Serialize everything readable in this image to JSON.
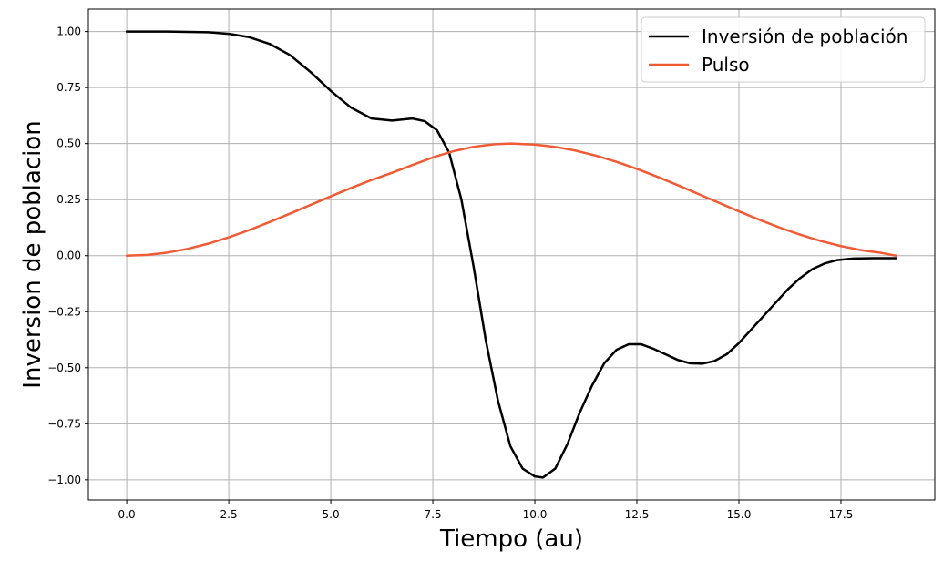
{
  "chart_data": {
    "type": "line",
    "title": "",
    "xlabel": "Tiempo (au)",
    "ylabel": "Inversion de poblacion",
    "xlim": [
      -0.94,
      19.8
    ],
    "ylim": [
      -1.09,
      1.1
    ],
    "xticks": [
      0.0,
      2.5,
      5.0,
      7.5,
      10.0,
      12.5,
      15.0,
      17.5
    ],
    "xtick_labels": [
      "0.0",
      "2.5",
      "5.0",
      "7.5",
      "10.0",
      "12.5",
      "15.0",
      "17.5"
    ],
    "yticks": [
      1.0,
      0.75,
      0.5,
      0.25,
      0.0,
      -0.25,
      -0.5,
      -0.75,
      -1.0
    ],
    "ytick_labels": [
      "1.00",
      "0.75",
      "0.50",
      "0.25",
      "0.00",
      "−0.25",
      "−0.50",
      "−0.75",
      "−1.00"
    ],
    "grid": true,
    "legend_position": "top-right",
    "series": [
      {
        "name": "Inversión de población",
        "color": "#000000",
        "points": [
          [
            0.0,
            1.0
          ],
          [
            1.0,
            1.0
          ],
          [
            2.0,
            0.997
          ],
          [
            2.5,
            0.99
          ],
          [
            3.0,
            0.975
          ],
          [
            3.5,
            0.945
          ],
          [
            4.0,
            0.895
          ],
          [
            4.5,
            0.82
          ],
          [
            5.0,
            0.735
          ],
          [
            5.5,
            0.66
          ],
          [
            6.0,
            0.612
          ],
          [
            6.5,
            0.603
          ],
          [
            7.0,
            0.612
          ],
          [
            7.3,
            0.6
          ],
          [
            7.6,
            0.56
          ],
          [
            7.9,
            0.46
          ],
          [
            8.2,
            0.25
          ],
          [
            8.5,
            -0.05
          ],
          [
            8.8,
            -0.38
          ],
          [
            9.1,
            -0.65
          ],
          [
            9.4,
            -0.85
          ],
          [
            9.7,
            -0.95
          ],
          [
            10.0,
            -0.985
          ],
          [
            10.2,
            -0.99
          ],
          [
            10.5,
            -0.95
          ],
          [
            10.8,
            -0.84
          ],
          [
            11.1,
            -0.7
          ],
          [
            11.4,
            -0.58
          ],
          [
            11.7,
            -0.48
          ],
          [
            12.0,
            -0.42
          ],
          [
            12.3,
            -0.395
          ],
          [
            12.6,
            -0.395
          ],
          [
            12.9,
            -0.415
          ],
          [
            13.2,
            -0.44
          ],
          [
            13.5,
            -0.465
          ],
          [
            13.8,
            -0.48
          ],
          [
            14.1,
            -0.482
          ],
          [
            14.4,
            -0.47
          ],
          [
            14.7,
            -0.44
          ],
          [
            15.0,
            -0.39
          ],
          [
            15.3,
            -0.33
          ],
          [
            15.6,
            -0.27
          ],
          [
            15.9,
            -0.21
          ],
          [
            16.2,
            -0.15
          ],
          [
            16.5,
            -0.1
          ],
          [
            16.8,
            -0.06
          ],
          [
            17.1,
            -0.035
          ],
          [
            17.4,
            -0.02
          ],
          [
            17.8,
            -0.013
          ],
          [
            18.3,
            -0.011
          ],
          [
            18.85,
            -0.011
          ]
        ]
      },
      {
        "name": "Pulso",
        "color": "#f05a35",
        "points": [
          [
            0.0,
            0.0
          ],
          [
            0.5,
            0.0035
          ],
          [
            1.0,
            0.0138
          ],
          [
            1.5,
            0.0307
          ],
          [
            2.0,
            0.0537
          ],
          [
            2.5,
            0.0818
          ],
          [
            3.0,
            0.1142
          ],
          [
            3.5,
            0.1499
          ],
          [
            4.0,
            0.1875
          ],
          [
            4.5,
            0.2261
          ],
          [
            5.0,
            0.2647
          ],
          [
            5.5,
            0.3023
          ],
          [
            6.0,
            0.3376
          ],
          [
            6.5,
            0.3698
          ],
          [
            7.0,
            0.4044
          ],
          [
            7.5,
            0.4383
          ],
          [
            8.0,
            0.466
          ],
          [
            8.5,
            0.4857
          ],
          [
            9.0,
            0.4973
          ],
          [
            9.42,
            0.5
          ],
          [
            10.0,
            0.4955
          ],
          [
            10.5,
            0.4852
          ],
          [
            11.0,
            0.4686
          ],
          [
            11.5,
            0.4462
          ],
          [
            12.0,
            0.4188
          ],
          [
            12.5,
            0.3872
          ],
          [
            13.0,
            0.3521
          ],
          [
            13.5,
            0.3146
          ],
          [
            14.0,
            0.2758
          ],
          [
            14.5,
            0.2365
          ],
          [
            15.0,
            0.1977
          ],
          [
            15.5,
            0.1603
          ],
          [
            16.0,
            0.1254
          ],
          [
            16.5,
            0.0936
          ],
          [
            17.0,
            0.0658
          ],
          [
            17.5,
            0.0426
          ],
          [
            18.0,
            0.0245
          ],
          [
            18.5,
            0.0119
          ],
          [
            18.85,
            0.0
          ]
        ]
      }
    ]
  }
}
